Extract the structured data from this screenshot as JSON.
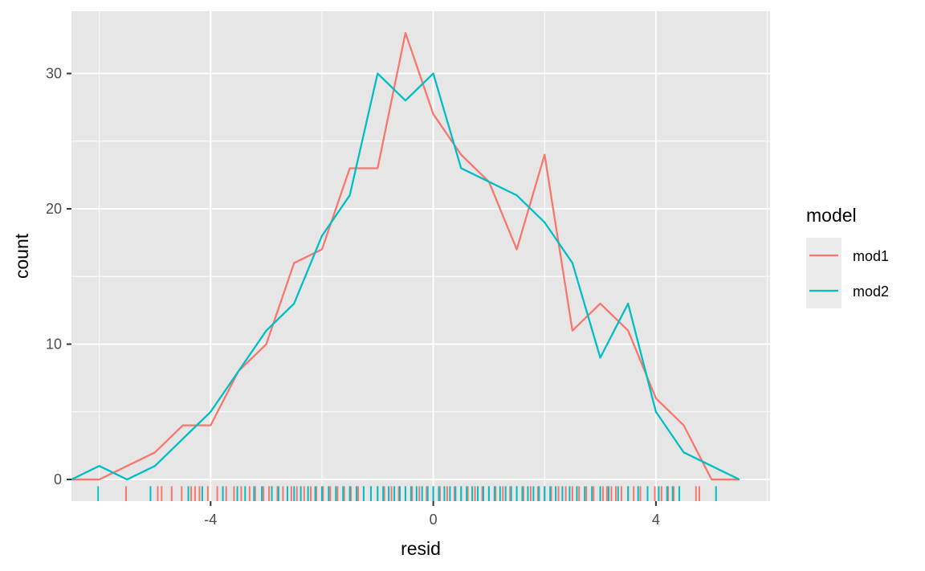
{
  "chart_data": {
    "type": "line",
    "xlabel": "resid",
    "ylabel": "count",
    "xlim": [
      -6.5,
      6.05
    ],
    "ylim": [
      -1.6,
      34.6
    ],
    "x_ticks": [
      -4,
      0,
      4
    ],
    "y_ticks": [
      0,
      10,
      20,
      30
    ],
    "x_tick_labels": [
      "-4",
      "0",
      "4"
    ],
    "y_tick_labels": [
      "0",
      "10",
      "20",
      "30"
    ],
    "grid": true,
    "panel_background": "#e6e6e6",
    "legend": {
      "title": "model",
      "position": "right"
    },
    "series": [
      {
        "name": "mod1",
        "color": "#f8766d",
        "x": [
          -6.5,
          -6,
          -5.5,
          -5,
          -4.5,
          -4,
          -3.5,
          -3,
          -2.5,
          -2,
          -1.5,
          -1,
          -0.5,
          0,
          0.5,
          1,
          1.5,
          2,
          2.5,
          3,
          3.5,
          4,
          4.5,
          5,
          5.5
        ],
        "y": [
          0,
          0,
          1,
          2,
          4,
          4,
          8,
          10,
          16,
          17,
          23,
          23,
          33,
          27,
          24,
          22,
          17,
          24,
          11,
          13,
          11,
          6,
          4,
          0,
          0
        ]
      },
      {
        "name": "mod2",
        "color": "#00bfc4",
        "x": [
          -6.5,
          -6,
          -5.5,
          -5,
          -4.5,
          -4,
          -3.5,
          -3,
          -2.5,
          -2,
          -1.5,
          -1,
          -0.5,
          0,
          0.5,
          1,
          1.5,
          2,
          2.5,
          3,
          3.5,
          4,
          4.5,
          5,
          5.5
        ],
        "y": [
          0,
          1,
          0,
          1,
          3,
          5,
          8,
          11,
          13,
          18,
          21,
          30,
          28,
          30,
          23,
          22,
          21,
          19,
          16,
          9,
          13,
          5,
          2,
          1,
          0
        ]
      }
    ],
    "rug": {
      "mod1": [
        -5.52,
        -4.95,
        -4.88,
        -4.7,
        -4.52,
        -4.35,
        -4.28,
        -4.2,
        -4.05,
        -3.88,
        -3.72,
        -3.58,
        -3.45,
        -3.3,
        -3.2,
        -3.05,
        -2.95,
        -2.8,
        -2.7,
        -2.55,
        -2.45,
        -2.32,
        -2.2,
        -2.1,
        -1.98,
        -1.85,
        -1.72,
        -1.6,
        -1.48,
        -1.35,
        -1.25,
        -1.12,
        -1.0,
        -0.88,
        -0.75,
        -0.62,
        -0.5,
        -0.38,
        -0.25,
        -0.12,
        0.0,
        0.12,
        0.25,
        0.38,
        0.5,
        0.62,
        0.75,
        0.88,
        1.0,
        1.12,
        1.25,
        1.38,
        1.5,
        1.62,
        1.75,
        1.88,
        2.0,
        2.12,
        2.25,
        2.38,
        2.5,
        2.62,
        2.75,
        2.88,
        3.0,
        3.05,
        3.12,
        3.2,
        3.28,
        3.38,
        3.5,
        3.6,
        3.72,
        3.85,
        3.98,
        4.1,
        4.22,
        4.32,
        4.72,
        4.78
      ],
      "mod2": [
        -6.02,
        -5.08,
        -4.4,
        -4.15,
        -3.78,
        -3.52,
        -3.38,
        -3.22,
        -3.08,
        -2.9,
        -2.78,
        -2.62,
        -2.5,
        -2.38,
        -2.25,
        -2.12,
        -2.0,
        -1.88,
        -1.75,
        -1.62,
        -1.5,
        -1.38,
        -1.25,
        -1.12,
        -1.0,
        -0.9,
        -0.8,
        -0.7,
        -0.6,
        -0.5,
        -0.4,
        -0.3,
        -0.2,
        -0.1,
        0.0,
        0.1,
        0.2,
        0.3,
        0.4,
        0.5,
        0.6,
        0.7,
        0.8,
        0.9,
        1.0,
        1.1,
        1.2,
        1.3,
        1.4,
        1.5,
        1.6,
        1.7,
        1.8,
        1.9,
        2.0,
        2.1,
        2.2,
        2.32,
        2.45,
        2.58,
        2.72,
        2.85,
        3.0,
        3.15,
        3.32,
        3.5,
        3.68,
        3.85,
        4.05,
        4.2,
        4.3,
        4.42,
        5.08
      ]
    }
  }
}
